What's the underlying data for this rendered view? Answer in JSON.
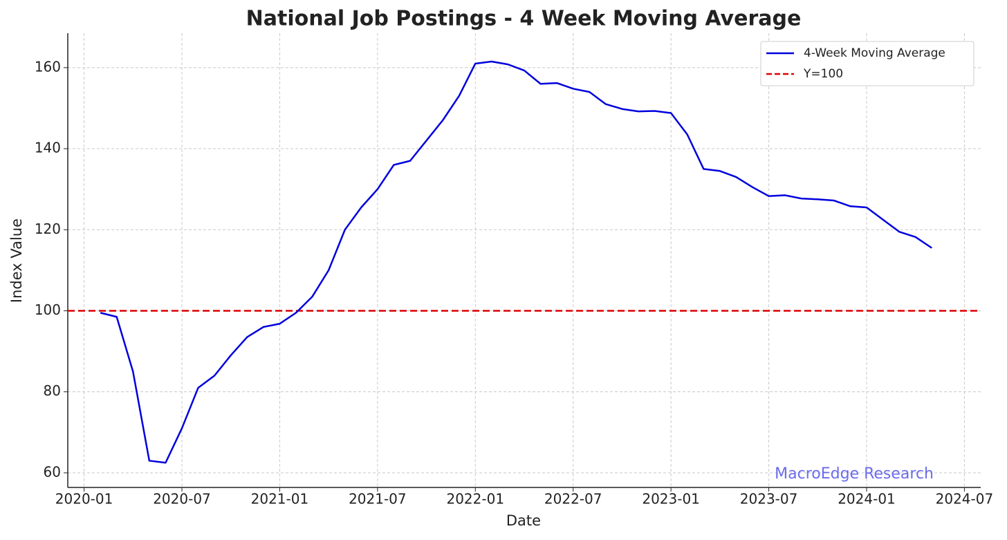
{
  "chart_data": {
    "type": "line",
    "title": "National Job Postings - 4 Week Moving Average",
    "x_label": "Date",
    "y_label": "Index Value",
    "x": [
      "2020-02",
      "2020-03",
      "2020-04",
      "2020-05",
      "2020-06",
      "2020-07",
      "2020-08",
      "2020-09",
      "2020-10",
      "2020-11",
      "2020-12",
      "2021-01",
      "2021-02",
      "2021-03",
      "2021-04",
      "2021-05",
      "2021-06",
      "2021-07",
      "2021-08",
      "2021-09",
      "2021-10",
      "2021-11",
      "2021-12",
      "2022-01",
      "2022-02",
      "2022-03",
      "2022-04",
      "2022-05",
      "2022-06",
      "2022-07",
      "2022-08",
      "2022-09",
      "2022-10",
      "2022-11",
      "2022-12",
      "2023-01",
      "2023-02",
      "2023-03",
      "2023-04",
      "2023-05",
      "2023-06",
      "2023-07",
      "2023-08",
      "2023-09",
      "2023-10",
      "2023-11",
      "2023-12",
      "2024-01",
      "2024-02",
      "2024-03",
      "2024-04",
      "2024-05"
    ],
    "series": [
      {
        "name": "4-Week Moving Average",
        "color": "#0000dd",
        "values": [
          99.5,
          98.5,
          85,
          63,
          62.5,
          71,
          81,
          84,
          89,
          93.5,
          96,
          96.8,
          99.5,
          103.5,
          110,
          120,
          125.5,
          130,
          136,
          137,
          142,
          147,
          153,
          161,
          161.5,
          160.8,
          159.3,
          156,
          156.2,
          154.8,
          154,
          151,
          149.8,
          149.2,
          149.3,
          148.8,
          143.5,
          135,
          134.5,
          133,
          130.5,
          128.3,
          128.5,
          127.7,
          127.5,
          127.2,
          125.8,
          125.5,
          122.5,
          119.5,
          118.2,
          115.5
        ]
      }
    ],
    "reference_line": {
      "name": "Y=100",
      "value": 100,
      "color": "#dd0000"
    },
    "annotation": "MacroEdge Research",
    "xlim": [
      "2019-12",
      "2024-08"
    ],
    "xticks": [
      "2020-01",
      "2020-07",
      "2021-01",
      "2021-07",
      "2022-01",
      "2022-07",
      "2023-01",
      "2023-07",
      "2024-01",
      "2024-07"
    ],
    "ylim": [
      56.4,
      168.5
    ],
    "yticks": [
      60,
      80,
      100,
      120,
      140,
      160
    ],
    "grid": true,
    "legend": "upper right"
  }
}
